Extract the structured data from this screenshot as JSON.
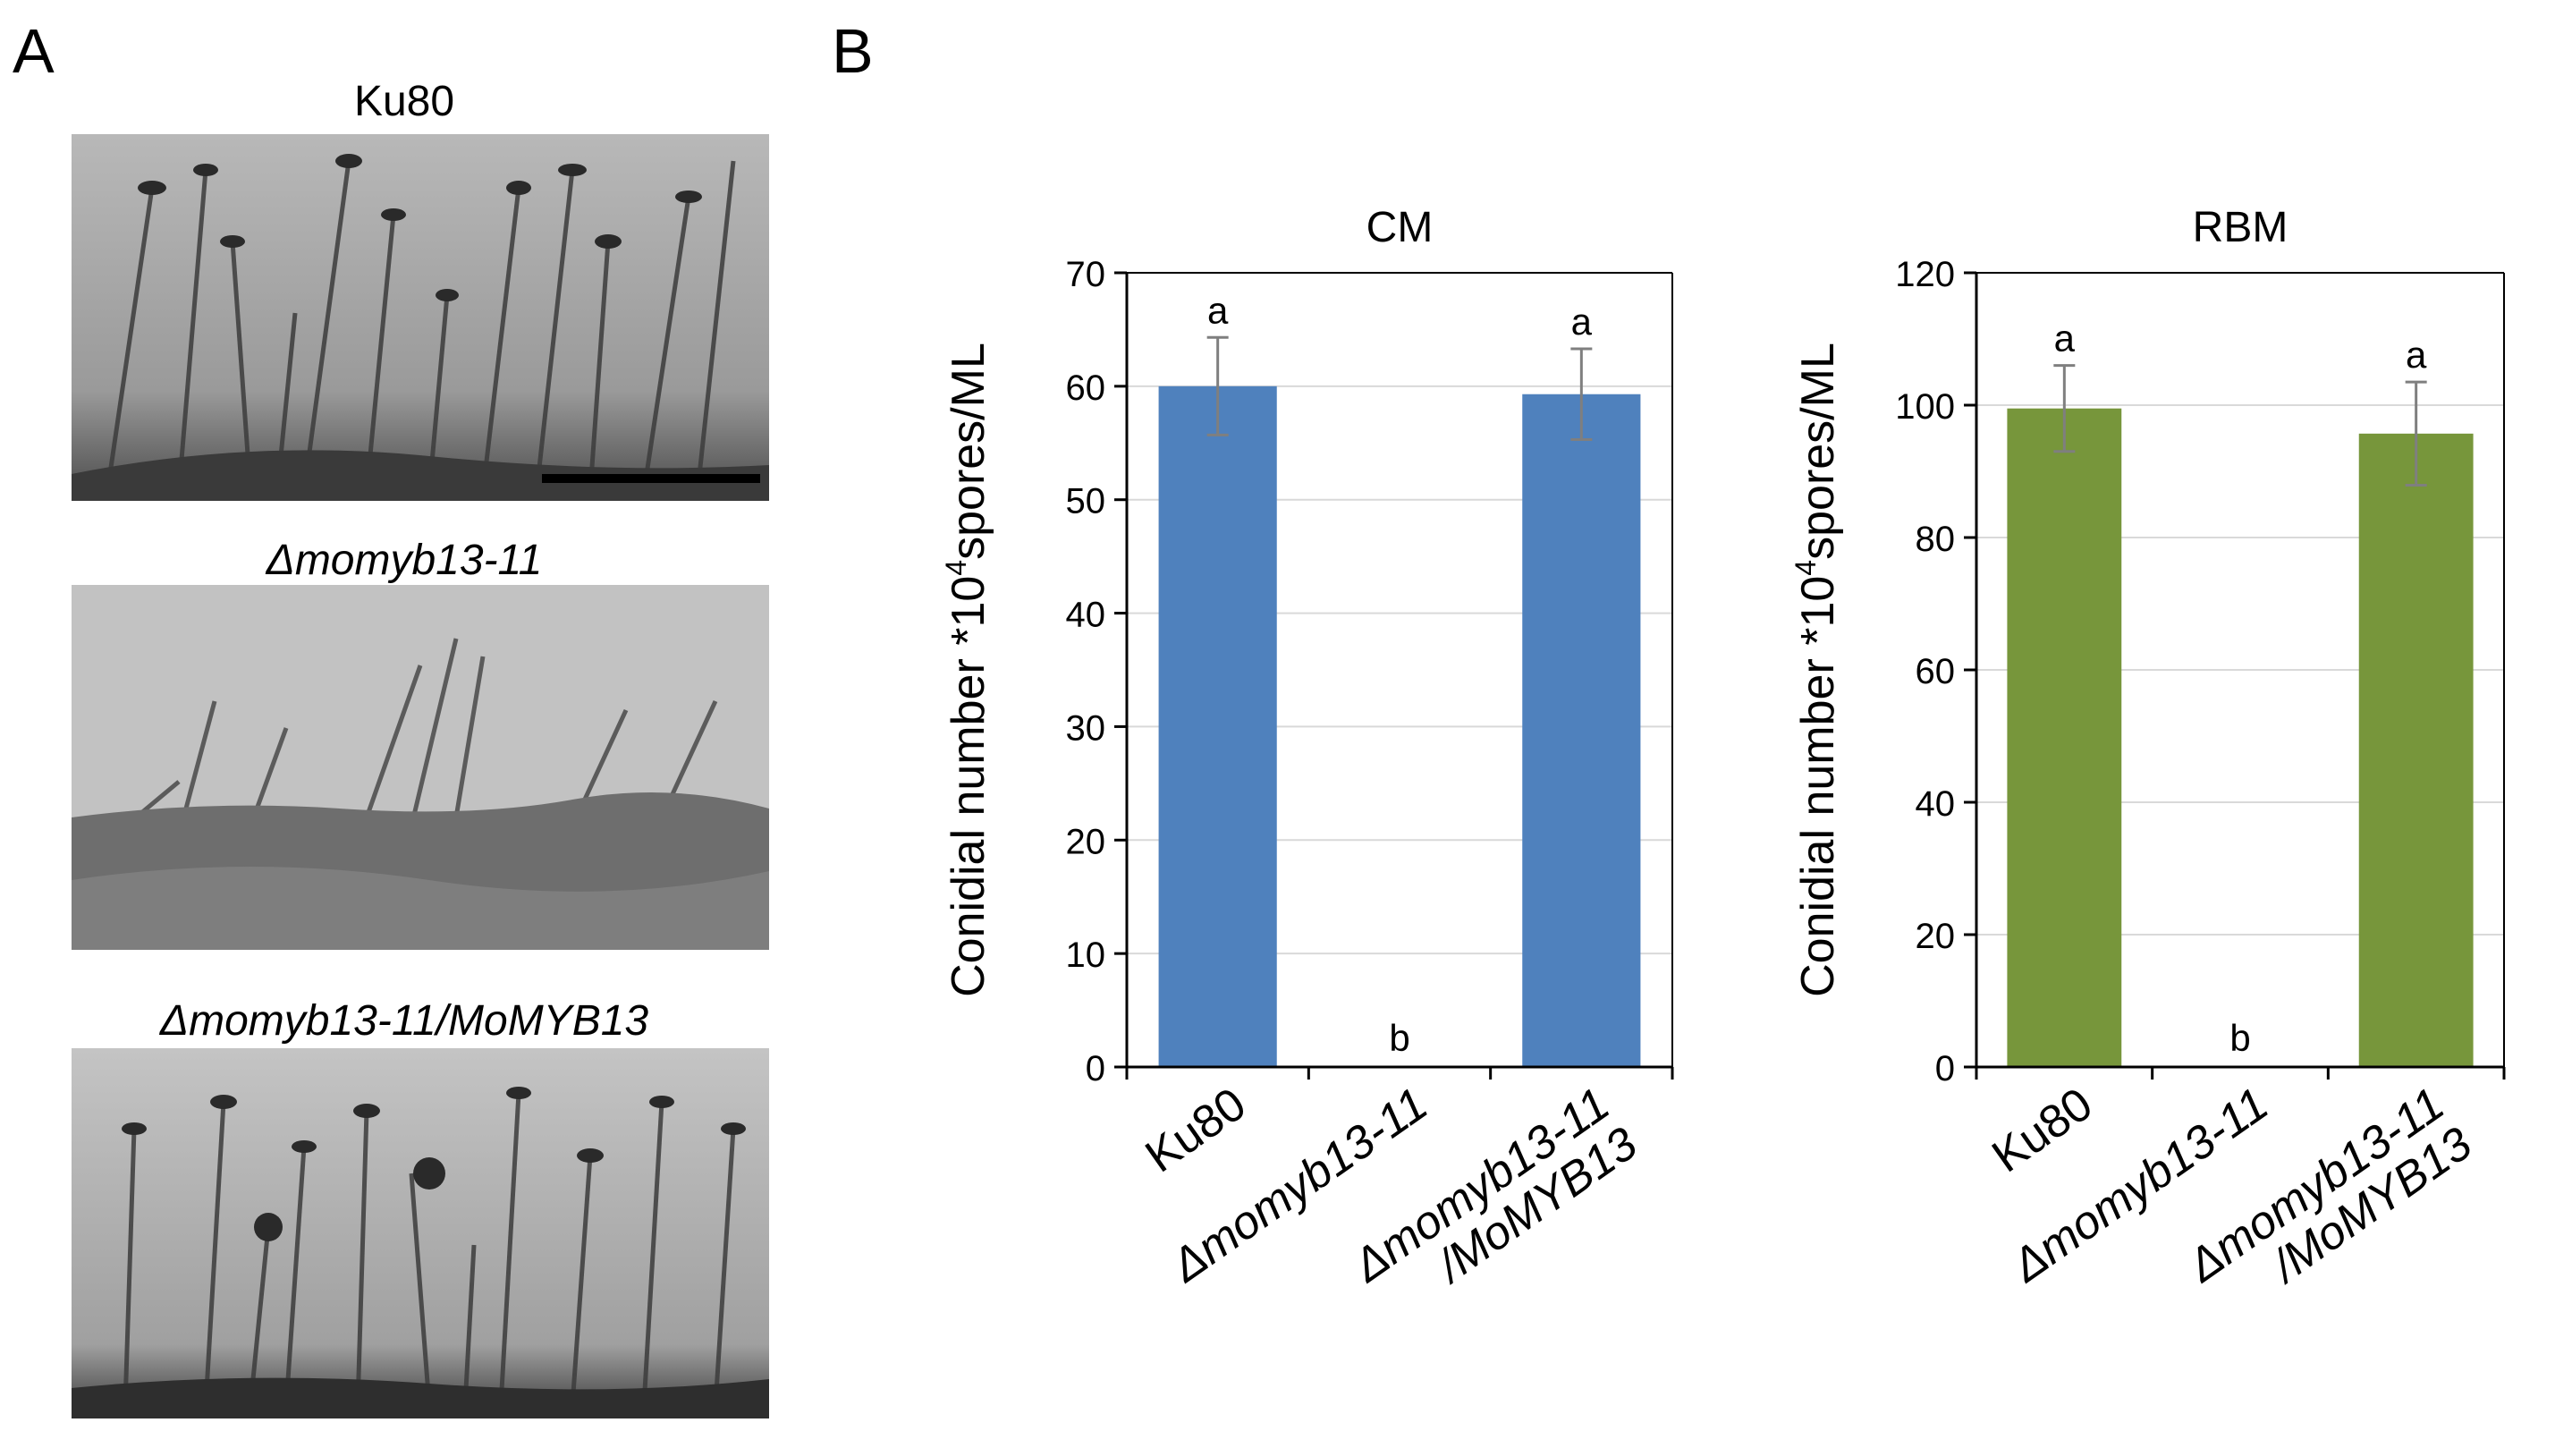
{
  "panelA": {
    "letter": "A",
    "images": [
      {
        "label": "Ku80",
        "italic": false,
        "scale_bar": true
      },
      {
        "label": "Δmomyb13-11",
        "italic": true,
        "scale_bar": false
      },
      {
        "label": "Δmomyb13-11/MoMYB13",
        "italic": true,
        "scale_bar": false
      }
    ]
  },
  "panelB": {
    "letter": "B"
  },
  "chart_data": [
    {
      "type": "bar",
      "title": "CM",
      "ylabel_pre": "Conidial number *10",
      "ylabel_sup": "4",
      "ylabel_post": "spores/ML",
      "ylim": [
        0,
        70
      ],
      "yticks": [
        0,
        10,
        20,
        30,
        40,
        50,
        60,
        70
      ],
      "grid": true,
      "color": "#4f81bd",
      "categories": [
        "Ku80",
        "Δmomyb13-11",
        "Δmomyb13-11 /MoMYB13"
      ],
      "values": [
        60,
        0,
        59.3
      ],
      "errors": [
        4.3,
        0,
        4.0
      ],
      "annotations": [
        "a",
        "b",
        "a"
      ]
    },
    {
      "type": "bar",
      "title": "RBM",
      "ylabel_pre": "Conidial number *10",
      "ylabel_sup": "4",
      "ylabel_post": "spores/ML",
      "ylim": [
        0,
        120
      ],
      "yticks": [
        0,
        20,
        40,
        60,
        80,
        100,
        120
      ],
      "grid": true,
      "color": "#77963b",
      "categories": [
        "Ku80",
        "Δmomyb13-11",
        "Δmomyb13-11 /MoMYB13"
      ],
      "values": [
        99.5,
        0,
        95.7
      ],
      "errors": [
        6.5,
        0,
        7.8
      ],
      "annotations": [
        "a",
        "b",
        "a"
      ]
    }
  ]
}
